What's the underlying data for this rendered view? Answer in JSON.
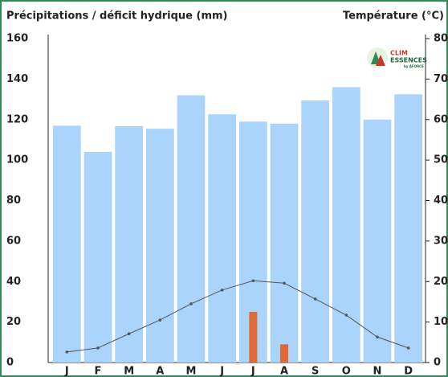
{
  "chart_data": {
    "type": "bar",
    "y_label": "Précipitations / déficit hydrique (mm)",
    "y2_label": "Température (°C)",
    "logo": [
      "CLIM",
      "ESSENCES",
      "by AFORCE"
    ],
    "categories": [
      "J",
      "F",
      "M",
      "A",
      "M",
      "J",
      "J",
      "A",
      "S",
      "O",
      "N",
      "D"
    ],
    "series": [
      {
        "name": "Précipitations",
        "type": "bar",
        "color": "#aad4fb",
        "values": [
          117,
          104,
          116.7,
          115.5,
          132,
          122.6,
          119,
          118,
          129.4,
          136,
          120,
          132.5
        ]
      },
      {
        "name": "Déficit hydrique",
        "type": "bar",
        "color": "#e06a35",
        "values": [
          0,
          0,
          0,
          0,
          0,
          0,
          25,
          9,
          0,
          0,
          0,
          0
        ]
      },
      {
        "name": "Température",
        "type": "line",
        "axis": "y2",
        "color": "#555555",
        "values": [
          2.6,
          3.6,
          7.1,
          10.5,
          14.5,
          17.9,
          20.2,
          19.6,
          15.7,
          11.7,
          6.3,
          3.6
        ]
      }
    ],
    "ylim": [
      0,
      160
    ],
    "yticks": [
      0,
      20,
      40,
      60,
      80,
      100,
      120,
      140,
      160
    ],
    "y2lim": [
      0,
      80
    ],
    "y2ticks": [
      0,
      10,
      20,
      30,
      40,
      50,
      60,
      70,
      80
    ]
  }
}
